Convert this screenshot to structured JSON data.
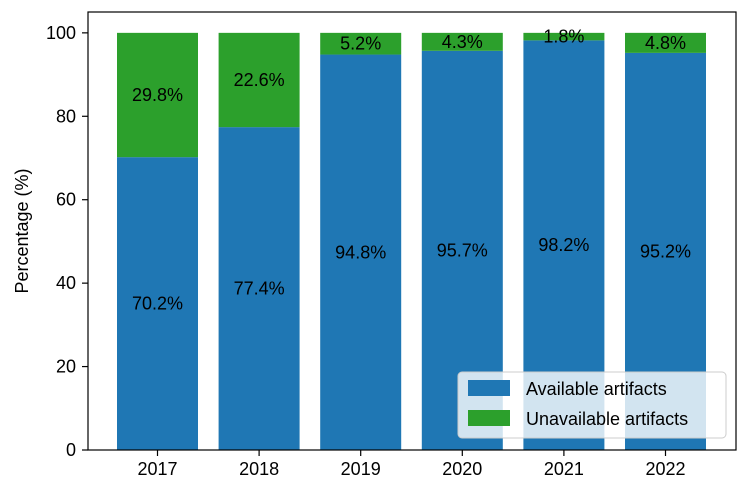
{
  "chart_data": {
    "type": "bar",
    "stacked": true,
    "title": "",
    "xlabel": "",
    "ylabel": "Percentage (%)",
    "ylim": [
      0,
      105
    ],
    "yticks": [
      0,
      20,
      40,
      60,
      80,
      100
    ],
    "categories": [
      "2017",
      "2018",
      "2019",
      "2020",
      "2021",
      "2022"
    ],
    "series": [
      {
        "name": "Available artifacts",
        "color": "#1f77b4",
        "values": [
          70.2,
          77.4,
          94.8,
          95.7,
          98.2,
          95.2
        ],
        "labels": [
          "70.2%",
          "77.4%",
          "94.8%",
          "95.7%",
          "98.2%",
          "95.2%"
        ]
      },
      {
        "name": "Unavailable artifacts",
        "color": "#2ca02c",
        "values": [
          29.8,
          22.6,
          5.2,
          4.3,
          1.8,
          4.8
        ],
        "labels": [
          "29.8%",
          "22.6%",
          "5.2%",
          "4.3%",
          "1.8%",
          "4.8%"
        ]
      }
    ],
    "legend": {
      "placement": "lower-right"
    }
  }
}
